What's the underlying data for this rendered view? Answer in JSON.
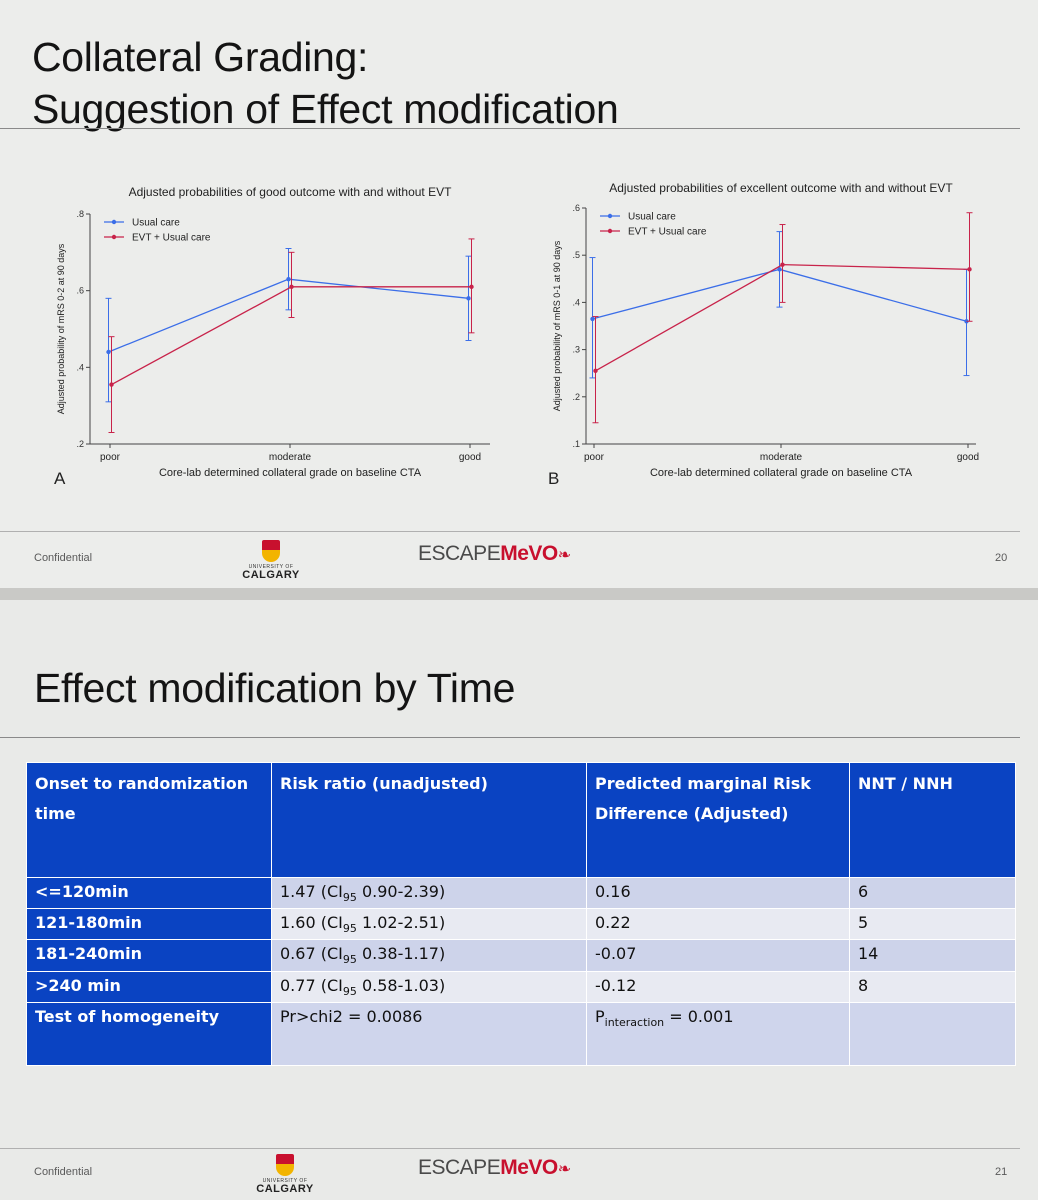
{
  "slide1": {
    "title_line1": "Collateral Grading:",
    "title_line2": "Suggestion of Effect modification",
    "footer_left": "Confidential",
    "page_number": "20",
    "logo_small": "UNIVERSITY OF",
    "logo_big": "CALGARY",
    "brand_part1": "ESCAPE",
    "brand_part2": "MeVO",
    "brand_icon": "runner-icon"
  },
  "slide2": {
    "title": "Effect modification by Time",
    "footer_left": "Confidential",
    "page_number": "21",
    "logo_small": "UNIVERSITY OF",
    "logo_big": "CALGARY",
    "brand_part1": "ESCAPE",
    "brand_part2": "MeVO",
    "brand_icon": "runner-icon",
    "table": {
      "headers": [
        "Onset to randomization time",
        "Risk ratio (unadjusted)",
        "Predicted marginal Risk Difference (Adjusted)",
        "NNT / NNH"
      ],
      "rows": [
        {
          "label": "<=120min",
          "rr": "1.47",
          "ci": "0.90-2.39",
          "rd": "0.16",
          "nnt": "6"
        },
        {
          "label": "121-180min",
          "rr": "1.60",
          "ci": "1.02-2.51",
          "rd": "0.22",
          "nnt": "5"
        },
        {
          "label": "181-240min",
          "rr": "0.67",
          "ci": "0.38-1.17",
          "rd": "-0.07",
          "nnt": "14"
        },
        {
          "label": ">240 min",
          "rr": "0.77",
          "ci": "0.58-1.03",
          "rd": "-0.12",
          "nnt": "8"
        }
      ],
      "ci_prefix": "CI",
      "ci_sub": "95",
      "homogeneity": {
        "label": "Test of homogeneity",
        "rr": "Pr>chi2 = 0.0086",
        "rd_prefix": "P",
        "rd_sub": "interaction",
        "rd_value": " = 0.001",
        "nnt": ""
      }
    }
  },
  "colors": {
    "usual_care": "#3b6ee8",
    "evt": "#c8234a",
    "table_header": "#0a43c2",
    "brand_red": "#c8102e"
  },
  "chart_data": [
    {
      "type": "line",
      "panel_letter": "A",
      "title": "Adjusted probabilities of good outcome with and without EVT",
      "xlabel": "Core-lab determined collateral grade on baseline CTA",
      "ylabel": "Adjusted probability of mRS 0-2 at 90 days",
      "categories": [
        "poor",
        "moderate",
        "good"
      ],
      "ylim": [
        0.2,
        0.8
      ],
      "yticks": [
        ".2",
        ".4",
        ".6",
        ".8"
      ],
      "yticks_values": [
        0.2,
        0.4,
        0.6,
        0.8
      ],
      "legend_position": "top-left",
      "grid": false,
      "series": [
        {
          "name": "Usual care",
          "color": "#3b6ee8",
          "values": [
            0.44,
            0.63,
            0.58
          ],
          "ci_low": [
            0.31,
            0.55,
            0.47
          ],
          "ci_high": [
            0.58,
            0.71,
            0.69
          ]
        },
        {
          "name": "EVT + Usual care",
          "color": "#c8234a",
          "values": [
            0.355,
            0.61,
            0.61
          ],
          "ci_low": [
            0.23,
            0.53,
            0.49
          ],
          "ci_high": [
            0.48,
            0.7,
            0.735
          ]
        }
      ]
    },
    {
      "type": "line",
      "panel_letter": "B",
      "title": "Adjusted probabilities of excellent outcome with and without EVT",
      "xlabel": "Core-lab determined collateral grade on baseline CTA",
      "ylabel": "Adjusted probability of mRS 0-1 at 90 days",
      "categories": [
        "poor",
        "moderate",
        "good"
      ],
      "ylim": [
        0.1,
        0.6
      ],
      "yticks": [
        ".1",
        ".2",
        ".3",
        ".4",
        ".5",
        ".6"
      ],
      "yticks_values": [
        0.1,
        0.2,
        0.3,
        0.4,
        0.5,
        0.6
      ],
      "legend_position": "top-left",
      "grid": false,
      "series": [
        {
          "name": "Usual care",
          "color": "#3b6ee8",
          "values": [
            0.365,
            0.47,
            0.36
          ],
          "ci_low": [
            0.24,
            0.39,
            0.245
          ],
          "ci_high": [
            0.495,
            0.55,
            0.47
          ]
        },
        {
          "name": "EVT + Usual care",
          "color": "#c8234a",
          "values": [
            0.255,
            0.48,
            0.47
          ],
          "ci_low": [
            0.145,
            0.4,
            0.36
          ],
          "ci_high": [
            0.37,
            0.565,
            0.59
          ]
        }
      ]
    }
  ]
}
